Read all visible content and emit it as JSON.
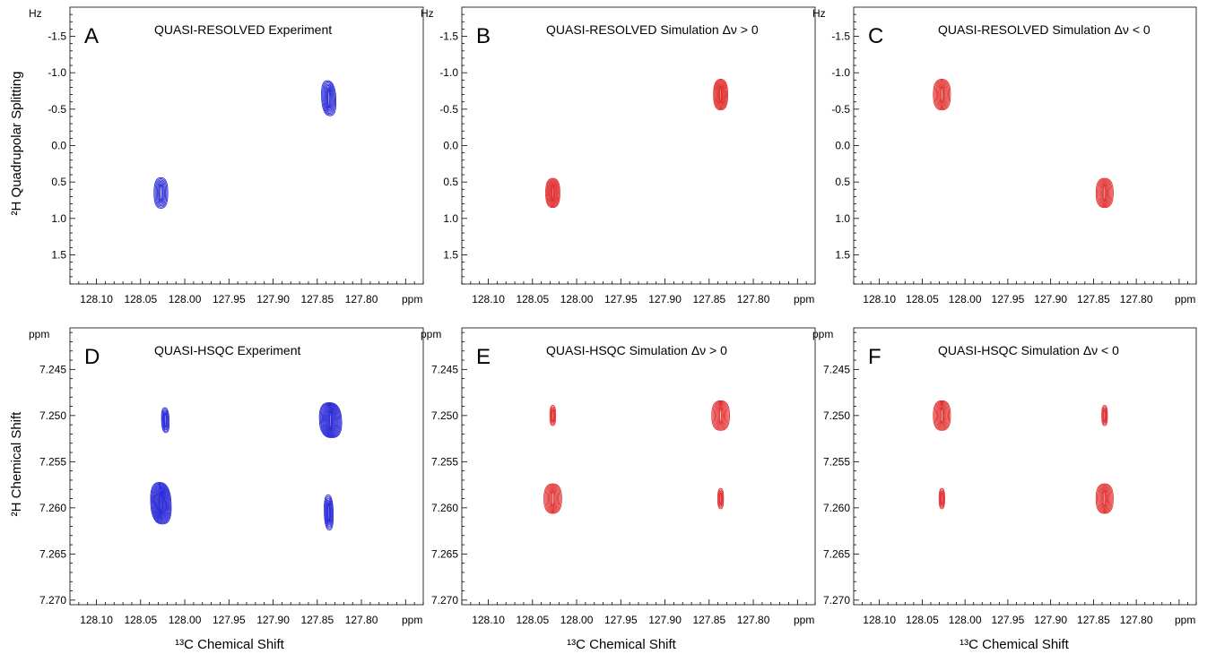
{
  "figure": {
    "ylabel_top": "²H Quadrupolar Splitting",
    "ylabel_bottom": "²H Chemical Shift",
    "xlabel": "¹³C Chemical Shift"
  },
  "chart_data": [
    {
      "type": "contour",
      "panel": "A",
      "title": "QUASI-RESOLVED Experiment",
      "x_unit": "ppm",
      "y_unit": "Hz",
      "xlim": [
        128.13,
        127.73
      ],
      "ylim": [
        -1.9,
        1.9
      ],
      "x_ticks": [
        "128.10",
        "128.05",
        "128.00",
        "127.95",
        "127.90",
        "127.85",
        "127.80"
      ],
      "y_ticks": [
        "-1.5",
        "-1.0",
        "-0.5",
        "0.0",
        "0.5",
        "1.0",
        "1.5"
      ],
      "y_inverted": true,
      "color": "#2a2ad6",
      "peaks": [
        {
          "x": 128.027,
          "y": 0.65,
          "wx": 0.0155,
          "wy": 0.42,
          "levels": 7,
          "skew": 0
        },
        {
          "x": 127.837,
          "y": -0.65,
          "wx": 0.016,
          "wy": 0.48,
          "levels": 8,
          "skew": 0.5
        }
      ]
    },
    {
      "type": "contour",
      "panel": "B",
      "title": "QUASI-RESOLVED Simulation Δν > 0",
      "x_unit": "ppm",
      "y_unit": "Hz",
      "xlim": [
        128.13,
        127.73
      ],
      "ylim": [
        -1.9,
        1.9
      ],
      "x_ticks": [
        "128.10",
        "128.05",
        "128.00",
        "127.95",
        "127.90",
        "127.85",
        "127.80"
      ],
      "y_ticks": [
        "-1.5",
        "-1.0",
        "-0.5",
        "0.0",
        "0.5",
        "1.0",
        "1.5"
      ],
      "y_inverted": true,
      "color": "#e0302f",
      "peaks": [
        {
          "x": 128.027,
          "y": 0.65,
          "wx": 0.016,
          "wy": 0.4,
          "levels": 9,
          "skew": 0
        },
        {
          "x": 127.837,
          "y": -0.7,
          "wx": 0.016,
          "wy": 0.42,
          "levels": 9,
          "skew": 0
        }
      ]
    },
    {
      "type": "contour",
      "panel": "C",
      "title": "QUASI-RESOLVED Simulation Δν < 0",
      "x_unit": "ppm",
      "y_unit": "Hz",
      "xlim": [
        128.13,
        127.73
      ],
      "ylim": [
        -1.9,
        1.9
      ],
      "x_ticks": [
        "128.10",
        "128.05",
        "128.00",
        "127.95",
        "127.90",
        "127.85",
        "127.80"
      ],
      "y_ticks": [
        "-1.5",
        "-1.0",
        "-0.5",
        "0.0",
        "0.5",
        "1.0",
        "1.5"
      ],
      "y_inverted": true,
      "color": "#e0302f",
      "peaks": [
        {
          "x": 128.027,
          "y": -0.7,
          "wx": 0.02,
          "wy": 0.42,
          "levels": 9,
          "skew": 0
        },
        {
          "x": 127.837,
          "y": 0.65,
          "wx": 0.02,
          "wy": 0.4,
          "levels": 9,
          "skew": 0
        }
      ]
    },
    {
      "type": "contour",
      "panel": "D",
      "title": "QUASI-HSQC Experiment",
      "x_unit": "ppm",
      "y_unit": "ppm",
      "xlim": [
        128.13,
        127.73
      ],
      "ylim": [
        7.2405,
        7.2705
      ],
      "x_ticks": [
        "128.10",
        "128.05",
        "128.00",
        "127.95",
        "127.90",
        "127.85",
        "127.80"
      ],
      "y_ticks": [
        "7.245",
        "7.250",
        "7.255",
        "7.260",
        "7.265",
        "7.270"
      ],
      "y_inverted": false,
      "color": "#2a2ad6",
      "peaks": [
        {
          "x": 128.022,
          "y": 7.2505,
          "wx": 0.0085,
          "wy": 0.0027,
          "levels": 5,
          "skew": 0.4
        },
        {
          "x": 128.027,
          "y": 7.2595,
          "wx": 0.023,
          "wy": 0.0045,
          "levels": 13,
          "skew": 0.4
        },
        {
          "x": 127.835,
          "y": 7.2505,
          "wx": 0.025,
          "wy": 0.0038,
          "levels": 13,
          "skew": 0.3
        },
        {
          "x": 127.837,
          "y": 7.2605,
          "wx": 0.01,
          "wy": 0.0038,
          "levels": 6,
          "skew": 0.4
        }
      ]
    },
    {
      "type": "contour",
      "panel": "E",
      "title": "QUASI-HSQC Simulation Δν > 0",
      "x_unit": "ppm",
      "y_unit": "ppm",
      "xlim": [
        128.13,
        127.73
      ],
      "ylim": [
        7.2405,
        7.2705
      ],
      "x_ticks": [
        "128.10",
        "128.05",
        "128.00",
        "127.95",
        "127.90",
        "127.85",
        "127.80"
      ],
      "y_ticks": [
        "7.245",
        "7.250",
        "7.255",
        "7.260",
        "7.265",
        "7.270"
      ],
      "y_inverted": false,
      "color": "#e0302f",
      "peaks": [
        {
          "x": 128.027,
          "y": 7.25,
          "wx": 0.0065,
          "wy": 0.0022,
          "levels": 4,
          "skew": 0
        },
        {
          "x": 128.027,
          "y": 7.259,
          "wx": 0.02,
          "wy": 0.0032,
          "levels": 9,
          "skew": 0
        },
        {
          "x": 127.837,
          "y": 7.25,
          "wx": 0.02,
          "wy": 0.0032,
          "levels": 9,
          "skew": 0
        },
        {
          "x": 127.837,
          "y": 7.259,
          "wx": 0.0065,
          "wy": 0.0022,
          "levels": 4,
          "skew": 0
        }
      ]
    },
    {
      "type": "contour",
      "panel": "F",
      "title": "QUASI-HSQC Simulation Δν < 0",
      "x_unit": "ppm",
      "y_unit": "ppm",
      "xlim": [
        128.13,
        127.73
      ],
      "ylim": [
        7.2405,
        7.2705
      ],
      "x_ticks": [
        "128.10",
        "128.05",
        "128.00",
        "127.95",
        "127.90",
        "127.85",
        "127.80"
      ],
      "y_ticks": [
        "7.245",
        "7.250",
        "7.255",
        "7.260",
        "7.265",
        "7.270"
      ],
      "y_inverted": false,
      "color": "#e0302f",
      "peaks": [
        {
          "x": 128.027,
          "y": 7.25,
          "wx": 0.02,
          "wy": 0.0032,
          "levels": 9,
          "skew": 0
        },
        {
          "x": 128.027,
          "y": 7.259,
          "wx": 0.0065,
          "wy": 0.0022,
          "levels": 4,
          "skew": 0
        },
        {
          "x": 127.837,
          "y": 7.25,
          "wx": 0.0065,
          "wy": 0.0022,
          "levels": 4,
          "skew": 0
        },
        {
          "x": 127.837,
          "y": 7.259,
          "wx": 0.02,
          "wy": 0.0032,
          "levels": 9,
          "skew": 0
        }
      ]
    }
  ]
}
